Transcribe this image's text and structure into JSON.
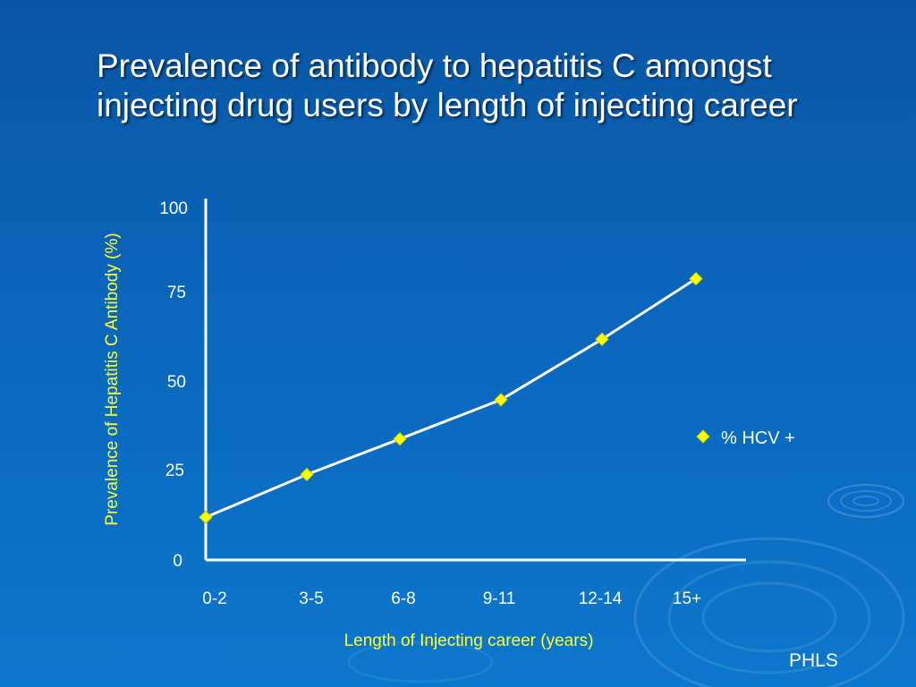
{
  "slide": {
    "title_line1": "Prevalence of antibody to hepatitis C amongst",
    "title_line2": "injecting drug users by length of injecting career",
    "credit": "PHLS"
  },
  "colors": {
    "background": "#0a66bb",
    "line": "#ffffff",
    "marker": "#ffff00",
    "axis_title": "#ffff33"
  },
  "chart_data": {
    "type": "line",
    "title": "",
    "xlabel": "Length of Injecting career (years)",
    "ylabel": "Prevalence of Hepatitis C Antibody (%)",
    "categories": [
      "0-2",
      "3-5",
      "6-8",
      "9-11",
      "12-14",
      "15+"
    ],
    "yticks": [
      "0",
      "25",
      "50",
      "75",
      "100"
    ],
    "ylim": [
      0,
      100
    ],
    "series": [
      {
        "name": "% HCV +",
        "values": [
          12,
          24,
          34,
          45,
          62,
          79
        ],
        "marker": "diamond"
      }
    ],
    "legend_position": "right",
    "grid": false
  }
}
